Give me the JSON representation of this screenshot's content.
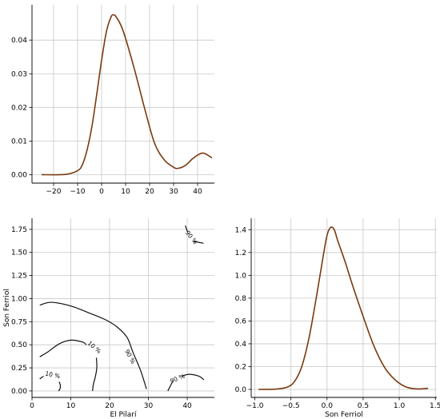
{
  "colors": {
    "density_line": "#7a3a10",
    "contour_line": "#111111",
    "grid": "#c8c8c8"
  },
  "chart_data": [
    {
      "id": "top",
      "type": "line",
      "title": "",
      "xlabel": "",
      "ylabel": "",
      "xlim": [
        -29,
        47
      ],
      "ylim": [
        -0.0025,
        0.0505
      ],
      "xticks": [
        -20,
        -10,
        0,
        10,
        20,
        30,
        40
      ],
      "xtick_labels": [
        "−20",
        "−10",
        "0",
        "10",
        "20",
        "30",
        "40"
      ],
      "yticks": [
        0.0,
        0.01,
        0.02,
        0.03,
        0.04
      ],
      "ytick_labels": [
        "0.00",
        "0.01",
        "0.02",
        "0.03",
        "0.04"
      ],
      "grid": true,
      "series": [
        {
          "x": [
            -25,
            -15,
            -10,
            -8,
            -6,
            -4,
            -2,
            0,
            2,
            4,
            5,
            6,
            8,
            10,
            14,
            18,
            22,
            26,
            30,
            32,
            35,
            38,
            41,
            43,
            46
          ],
          "y": [
            0.0,
            0.0001,
            0.0012,
            0.003,
            0.0075,
            0.0145,
            0.024,
            0.034,
            0.0425,
            0.047,
            0.0475,
            0.047,
            0.0445,
            0.0405,
            0.0305,
            0.0195,
            0.0095,
            0.0045,
            0.0022,
            0.0019,
            0.0028,
            0.0048,
            0.0062,
            0.0063,
            0.005
          ]
        }
      ]
    },
    {
      "id": "bottom-left",
      "type": "contour",
      "title": "",
      "xlabel": "El Pilarí",
      "ylabel": "Son Ferriol",
      "xlim": [
        0,
        47
      ],
      "ylim": [
        -0.07,
        1.87
      ],
      "xticks": [
        0,
        10,
        20,
        30,
        40
      ],
      "xtick_labels": [
        "0",
        "10",
        "20",
        "30",
        "40"
      ],
      "yticks": [
        0.0,
        0.25,
        0.5,
        0.75,
        1.0,
        1.25,
        1.5,
        1.75
      ],
      "ytick_labels": [
        "0.00",
        "0.25",
        "0.50",
        "0.75",
        "1.00",
        "1.25",
        "1.50",
        "1.75"
      ],
      "grid": true,
      "contours": [
        {
          "label": "",
          "x": [
            2,
            5,
            10,
            15,
            19,
            22,
            24.5,
            26,
            28,
            29.5
          ],
          "y": [
            0.93,
            0.96,
            0.92,
            0.84,
            0.77,
            0.69,
            0.58,
            0.42,
            0.22,
            0.02
          ]
        },
        {
          "label": "",
          "x": [
            2,
            4,
            7,
            10,
            13,
            14
          ],
          "y": [
            0.37,
            0.42,
            0.51,
            0.55,
            0.53,
            0.5
          ]
        },
        {
          "label": "",
          "x": [
            16.6,
            16.7,
            16.3,
            15.8,
            15.6
          ],
          "y": [
            0.36,
            0.25,
            0.15,
            0.07,
            0.0
          ]
        },
        {
          "label": "",
          "x": [
            2,
            3
          ],
          "y": [
            0.13,
            0.16
          ]
        },
        {
          "label": "",
          "x": [
            7,
            7.3,
            7.2,
            6.8
          ],
          "y": [
            0.1,
            0.06,
            0.02,
            0.0
          ]
        },
        {
          "label": "",
          "x": [
            35,
            35.6,
            36.2
          ],
          "y": [
            0.0,
            0.05,
            0.1
          ]
        },
        {
          "label": "",
          "x": [
            38.5,
            40.5,
            43,
            44.3
          ],
          "y": [
            0.16,
            0.18,
            0.16,
            0.12
          ]
        },
        {
          "label": "",
          "x": [
            39.5,
            40.1
          ],
          "y": [
            1.79,
            1.72
          ]
        },
        {
          "label": "",
          "x": [
            41.5,
            44.2
          ],
          "y": [
            1.62,
            1.6
          ]
        }
      ],
      "contour_labels": [
        {
          "text": "10 %",
          "x": 16,
          "y": 0.47,
          "angle": 40
        },
        {
          "text": "90 %",
          "x": 25.2,
          "y": 0.37,
          "angle": 62
        },
        {
          "text": "10 %",
          "x": 5.3,
          "y": 0.17,
          "angle": 12
        },
        {
          "text": "90 %",
          "x": 37.5,
          "y": 0.13,
          "angle": -22
        },
        {
          "text": "90 %",
          "x": 41,
          "y": 1.66,
          "angle": 52
        }
      ]
    },
    {
      "id": "bottom-right",
      "type": "line",
      "title": "",
      "xlabel": "Son Ferriol",
      "ylabel": "",
      "xlim": [
        -1.05,
        1.52
      ],
      "ylim": [
        -0.07,
        1.5
      ],
      "xticks": [
        -1.0,
        -0.5,
        0.0,
        0.5,
        1.0,
        1.5
      ],
      "xtick_labels": [
        "−1.0",
        "−0.5",
        "0.0",
        "0.5",
        "1.0",
        "1.5"
      ],
      "yticks": [
        0.0,
        0.2,
        0.4,
        0.6,
        0.8,
        1.0,
        1.2,
        1.4
      ],
      "ytick_labels": [
        "0.0",
        "0.2",
        "0.4",
        "0.6",
        "0.8",
        "1.0",
        "1.2",
        "1.4"
      ],
      "grid": true,
      "series": [
        {
          "x": [
            -0.95,
            -0.7,
            -0.55,
            -0.45,
            -0.35,
            -0.25,
            -0.15,
            -0.05,
            0.0,
            0.05,
            0.1,
            0.15,
            0.25,
            0.35,
            0.5,
            0.65,
            0.8,
            0.95,
            1.1,
            1.25,
            1.4
          ],
          "y": [
            0.0,
            0.003,
            0.02,
            0.07,
            0.2,
            0.45,
            0.8,
            1.18,
            1.35,
            1.42,
            1.4,
            1.3,
            1.12,
            0.92,
            0.64,
            0.38,
            0.19,
            0.08,
            0.02,
            0.004,
            0.01
          ]
        }
      ]
    }
  ]
}
